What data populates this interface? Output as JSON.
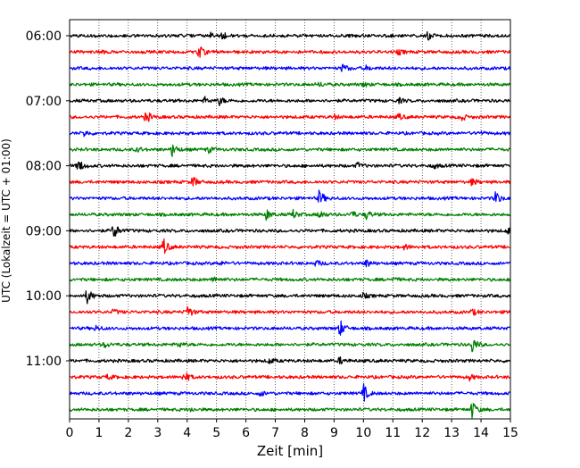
{
  "chart_data": {
    "type": "line",
    "chart_kind": "helicorder seismogram",
    "title": "",
    "xlabel": "Zeit  [min]",
    "ylabel": "UTC (Lokalzeit = UTC + 01:00)",
    "xlim": [
      0,
      15
    ],
    "x_ticks": [
      0,
      1,
      2,
      3,
      4,
      5,
      6,
      7,
      8,
      9,
      10,
      11,
      12,
      13,
      14,
      15
    ],
    "y_tick_labels": [
      "06:00",
      "07:00",
      "08:00",
      "09:00",
      "10:00",
      "11:00"
    ],
    "y_tick_rows": [
      0,
      4,
      8,
      12,
      16,
      20
    ],
    "grid": "vertical dotted at each minute",
    "legend": "none",
    "row_interval_minutes": 15,
    "row_count": 24,
    "row_color_cycle": [
      "#000000",
      "#ff0000",
      "#0000ff",
      "#008000"
    ],
    "rows": [
      {
        "start": "06:00",
        "events": [
          [
            5.2,
            0.35
          ],
          [
            4.8,
            0.2
          ],
          [
            12.2,
            0.35
          ]
        ]
      },
      {
        "start": "06:15",
        "events": [
          [
            4.4,
            0.75
          ],
          [
            1.0,
            0.2
          ],
          [
            11.2,
            0.25
          ]
        ]
      },
      {
        "start": "06:30",
        "events": [
          [
            9.3,
            0.45
          ],
          [
            10.1,
            0.2
          ]
        ]
      },
      {
        "start": "06:45",
        "events": [
          [
            8.5,
            0.2
          ],
          [
            10.0,
            0.2
          ]
        ]
      },
      {
        "start": "07:00",
        "events": [
          [
            5.1,
            0.4
          ],
          [
            4.6,
            0.3
          ],
          [
            11.2,
            0.25
          ]
        ]
      },
      {
        "start": "07:15",
        "events": [
          [
            2.6,
            0.65
          ],
          [
            13.3,
            0.45
          ],
          [
            11.2,
            0.3
          ],
          [
            9.0,
            0.2
          ]
        ]
      },
      {
        "start": "07:30",
        "events": [
          [
            0.5,
            0.3
          ],
          [
            13.9,
            0.2
          ]
        ]
      },
      {
        "start": "07:45",
        "events": [
          [
            3.5,
            0.7
          ],
          [
            4.7,
            0.35
          ],
          [
            2.3,
            0.25
          ]
        ]
      },
      {
        "start": "08:00",
        "events": [
          [
            0.3,
            0.7
          ],
          [
            9.8,
            0.3
          ],
          [
            12.4,
            0.25
          ]
        ]
      },
      {
        "start": "08:15",
        "events": [
          [
            4.2,
            0.55
          ],
          [
            13.7,
            0.35
          ]
        ]
      },
      {
        "start": "08:30",
        "events": [
          [
            8.5,
            0.85
          ],
          [
            14.5,
            0.7
          ]
        ]
      },
      {
        "start": "08:45",
        "events": [
          [
            6.7,
            0.55
          ],
          [
            7.6,
            0.45
          ],
          [
            8.5,
            0.45
          ],
          [
            9.6,
            0.35
          ],
          [
            10.1,
            0.45
          ]
        ]
      },
      {
        "start": "09:00",
        "events": [
          [
            1.5,
            0.9
          ],
          [
            14.9,
            0.35
          ]
        ]
      },
      {
        "start": "09:15",
        "events": [
          [
            3.2,
            0.85
          ],
          [
            11.4,
            0.25
          ]
        ]
      },
      {
        "start": "09:30",
        "events": [
          [
            8.4,
            0.3
          ],
          [
            10.1,
            0.4
          ],
          [
            5.1,
            0.2
          ]
        ]
      },
      {
        "start": "09:45",
        "events": [
          [
            4.9,
            0.35
          ],
          [
            11.0,
            0.2
          ]
        ]
      },
      {
        "start": "10:00",
        "events": [
          [
            0.6,
            0.8
          ],
          [
            10.0,
            0.25
          ]
        ]
      },
      {
        "start": "10:15",
        "events": [
          [
            4.0,
            0.75
          ],
          [
            1.5,
            0.3
          ],
          [
            13.7,
            0.3
          ]
        ]
      },
      {
        "start": "10:30",
        "events": [
          [
            9.2,
            0.85
          ],
          [
            0.9,
            0.25
          ]
        ]
      },
      {
        "start": "10:45",
        "events": [
          [
            13.7,
            0.85
          ],
          [
            1.2,
            0.3
          ],
          [
            3.7,
            0.3
          ]
        ]
      },
      {
        "start": "11:00",
        "events": [
          [
            6.8,
            0.3
          ],
          [
            9.2,
            0.35
          ]
        ]
      },
      {
        "start": "11:15",
        "events": [
          [
            3.9,
            0.65
          ],
          [
            13.6,
            0.3
          ],
          [
            1.3,
            0.25
          ]
        ]
      },
      {
        "start": "11:30",
        "events": [
          [
            10.0,
            0.9
          ],
          [
            6.5,
            0.25
          ]
        ]
      },
      {
        "start": "11:45",
        "events": [
          [
            13.7,
            0.9
          ],
          [
            4.1,
            0.2
          ]
        ]
      }
    ]
  }
}
